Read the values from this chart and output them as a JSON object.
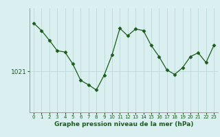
{
  "hours": [
    0,
    1,
    2,
    3,
    4,
    5,
    6,
    7,
    8,
    9,
    10,
    11,
    12,
    13,
    14,
    15,
    16,
    17,
    18,
    19,
    20,
    21,
    22,
    23
  ],
  "values": [
    1027.5,
    1026.5,
    1025.2,
    1023.8,
    1023.6,
    1022.0,
    1019.8,
    1019.2,
    1018.5,
    1020.5,
    1023.2,
    1026.8,
    1025.8,
    1026.7,
    1026.5,
    1024.5,
    1023.0,
    1021.2,
    1020.6,
    1021.5,
    1023.0,
    1023.5,
    1022.2,
    1024.5
  ],
  "line_color": "#1a5c1a",
  "marker": "D",
  "marker_size": 2.5,
  "bg_color": "#daf0f0",
  "plot_bg_color": "#daf0f0",
  "grid_color": "#b8d4d4",
  "ylabel_val": 1021,
  "xlabel": "Graphe pression niveau de la mer (hPa)",
  "ylim_min": 1015.5,
  "ylim_max": 1029.5,
  "tick_label_color": "#1a5c1a",
  "xlabel_color": "#1a5c1a"
}
